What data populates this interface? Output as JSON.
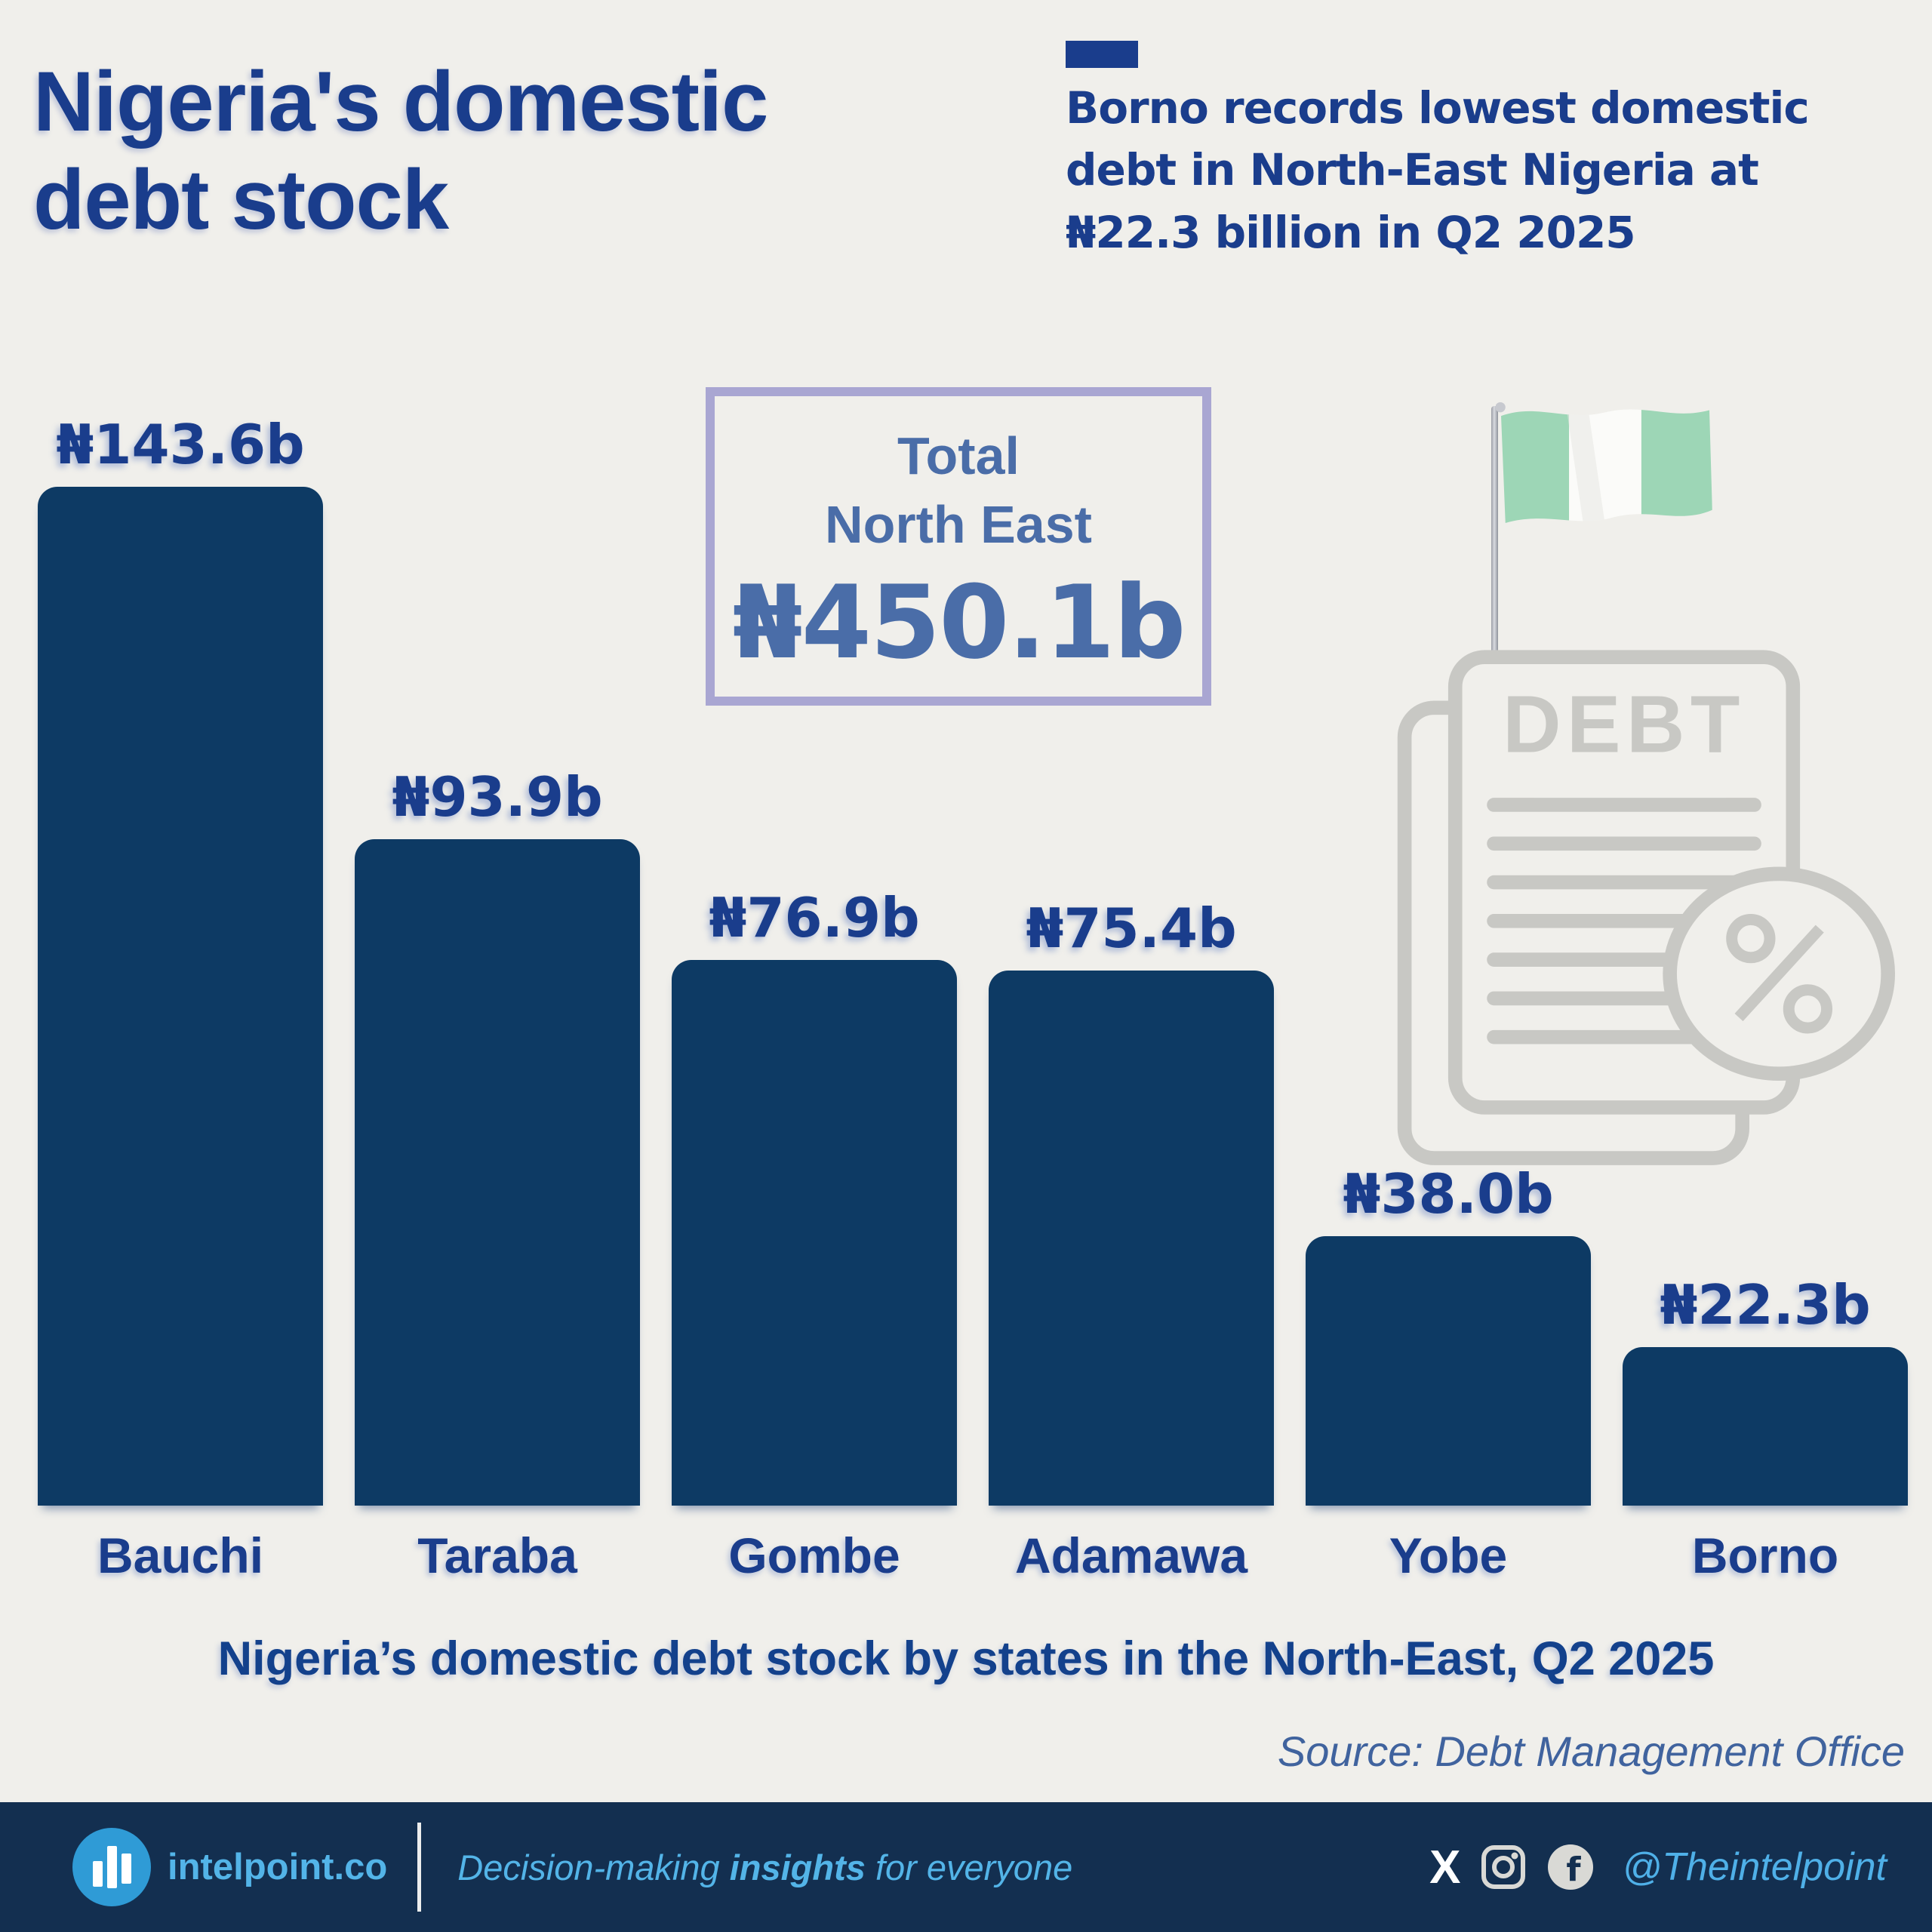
{
  "page": {
    "background": "#f0efeb"
  },
  "title": "Nigeria's domestic\ndebt stock",
  "headline": {
    "dash_color": "#1a3d8c",
    "text": "Borno records lowest domestic\ndebt in North-East Nigeria at\n₦22.3 billion in Q2 2025"
  },
  "total_box": {
    "label": "Total\nNorth East",
    "value": "₦450.1b",
    "border_color": "#a9a6d2",
    "text_color": "#4a6da8"
  },
  "illustration": {
    "flag": "nigeria-flag",
    "doc_label": "DEBT",
    "flag_green": "#9dd6b6",
    "doc_gray": "#c8c8c4"
  },
  "chart_data": {
    "type": "bar",
    "title": "Nigeria's domestic debt stock by states in the North-East, Q2 2025",
    "categories": [
      "Bauchi",
      "Taraba",
      "Gombe",
      "Adamawa",
      "Yobe",
      "Borno"
    ],
    "values": [
      143.6,
      93.9,
      76.9,
      75.4,
      38.0,
      22.3
    ],
    "values_display": [
      "₦143.6b",
      "₦93.9b",
      "₦76.9b",
      "₦75.4b",
      "₦38.0b",
      "₦22.3b"
    ],
    "unit": "₦ billion",
    "total": 450.1,
    "total_display": "₦450.1b",
    "bar_color": "#0d3a64",
    "label_color": "#1a3d8c",
    "grid": false,
    "legend": false,
    "ylim": [
      0,
      143.6
    ]
  },
  "caption": "Nigeria’s domestic debt stock by states in the North-East, Q2 2025",
  "source": "Source: Debt Management Office",
  "footer": {
    "background": "#132f50",
    "brand": "intelpoint.co",
    "tagline_prefix": "Decision-making ",
    "tagline_bold": "insights",
    "tagline_suffix": " for everyone",
    "social_icons": [
      "x-icon",
      "instagram-icon",
      "facebook-icon"
    ],
    "handle": "@Theintelpoint",
    "accent": "#4fb0e8"
  }
}
